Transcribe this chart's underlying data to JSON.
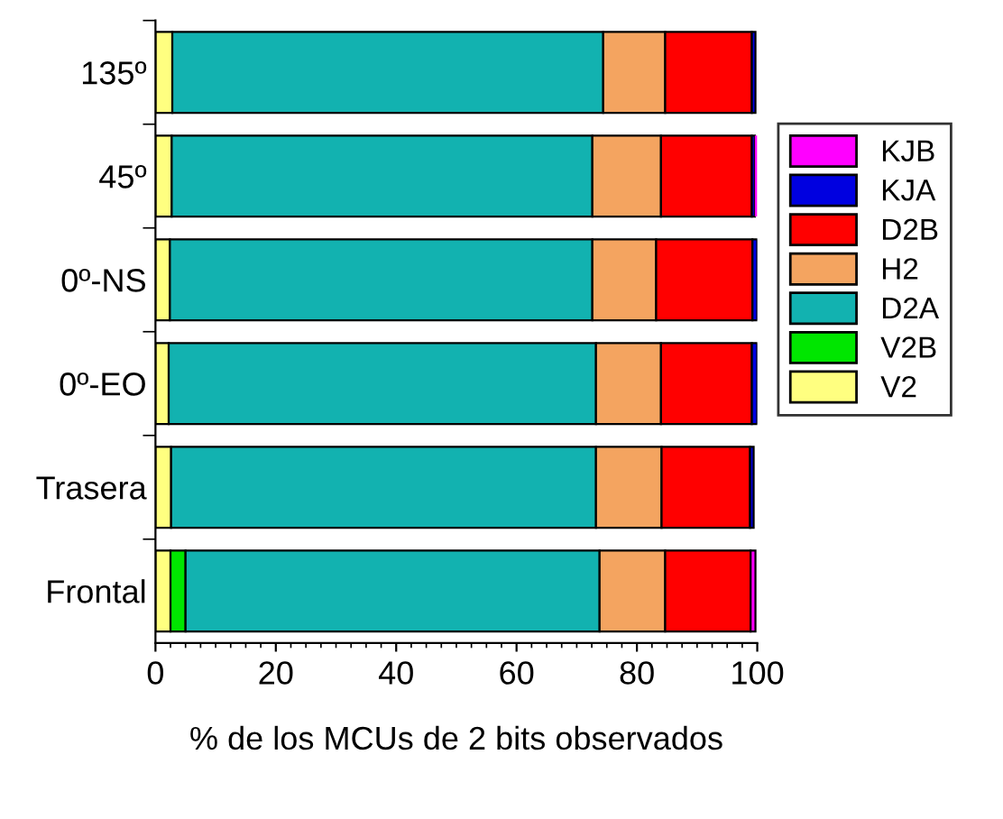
{
  "chart_data": {
    "type": "bar",
    "orientation": "horizontal",
    "stacked": true,
    "xlabel": "% de los MCUs de 2 bits observados",
    "categories": [
      "135º",
      "45º",
      "0º-NS",
      "0º-EO",
      "Trasera",
      "Frontal"
    ],
    "series": [
      {
        "name": "V2",
        "color": "#ffff80",
        "values": [
          2.8,
          2.7,
          2.4,
          2.2,
          2.6,
          2.5
        ]
      },
      {
        "name": "V2B",
        "color": "#00e600",
        "values": [
          0,
          0,
          0,
          0,
          null,
          2.5
        ]
      },
      {
        "name": "D2A",
        "color": "#12b2b0",
        "values": [
          71.6,
          69.9,
          70.2,
          71.0,
          70.6,
          68.8
        ]
      },
      {
        "name": "H2",
        "color": "#f4a460",
        "values": [
          10.3,
          11.4,
          10.6,
          10.8,
          10.9,
          10.9
        ]
      },
      {
        "name": "D2B",
        "color": "#ff0000",
        "values": [
          14.4,
          15.1,
          16.0,
          15.1,
          14.7,
          14.2
        ]
      },
      {
        "name": "KJA",
        "color": "#0000e0",
        "values": [
          0.6,
          0.5,
          0.8,
          0.9,
          0.6,
          null
        ]
      },
      {
        "name": "KJB",
        "color": "#ff00ff",
        "values": [
          null,
          0.4,
          0,
          0,
          null,
          0.8
        ]
      }
    ],
    "xlim": [
      0,
      100
    ],
    "xticks": [
      0,
      20,
      40,
      60,
      80,
      100
    ],
    "grid": false,
    "legend": "right"
  }
}
